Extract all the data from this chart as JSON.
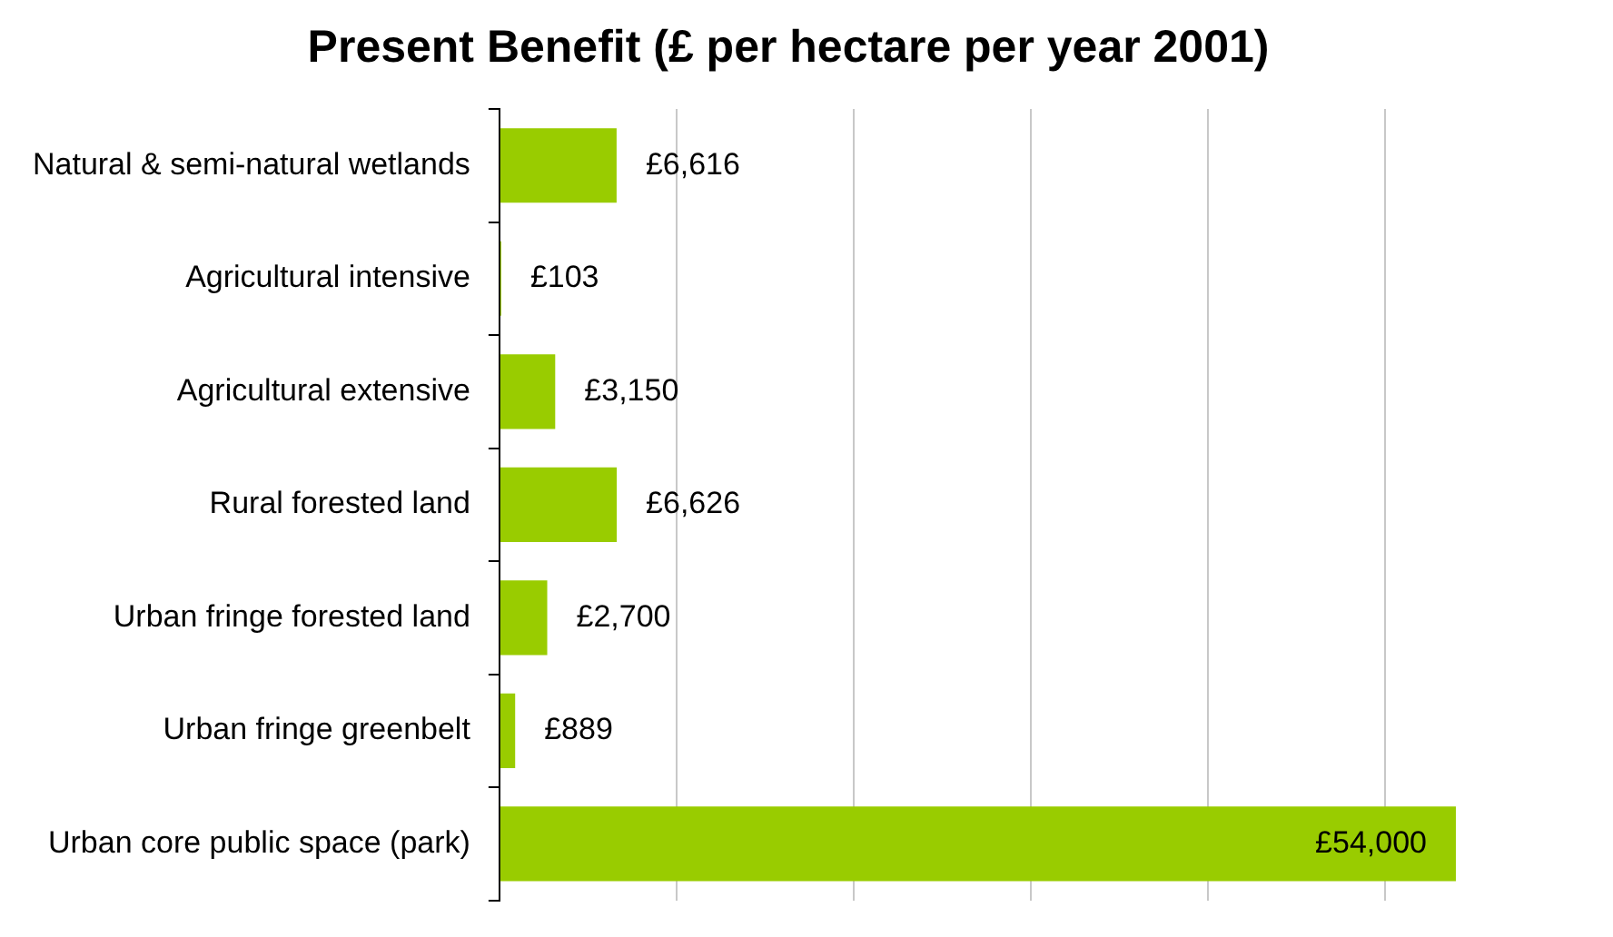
{
  "chart_data": {
    "type": "bar",
    "orientation": "horizontal",
    "title": "Present Benefit (£ per hectare per year 2001)",
    "categories": [
      "Natural & semi-natural wetlands",
      "Agricultural intensive",
      "Agricultural extensive",
      "Rural forested land",
      "Urban fringe forested land",
      "Urban fringe greenbelt",
      "Urban core public space (park)"
    ],
    "values": [
      6616,
      103,
      3150,
      6626,
      2700,
      889,
      54000
    ],
    "value_labels": [
      "£6,616",
      "£103",
      "£3,150",
      "£6,626",
      "£2,700",
      "£889",
      "£54,000"
    ],
    "color": "#99cc00",
    "xticks": [
      {
        "value": 0,
        "label": null
      },
      {
        "value": 10000,
        "label": null
      },
      {
        "value": 20000,
        "label": null
      },
      {
        "value": 30000,
        "label": null
      },
      {
        "value": 40000,
        "label": null
      },
      {
        "value": 50000,
        "label": null
      }
    ],
    "grid": "x",
    "legend": false,
    "tick_labels": "y"
  }
}
